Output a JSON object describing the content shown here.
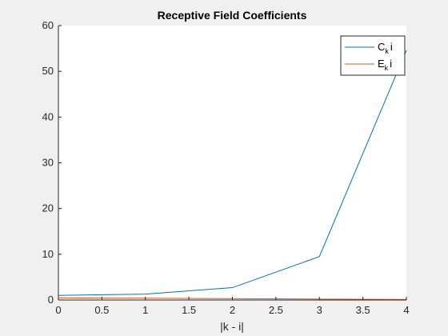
{
  "chart_data": {
    "type": "line",
    "title": "Receptive Field Coefficients",
    "xlabel": "|k - i|",
    "ylabel": "",
    "xlim": [
      0,
      4
    ],
    "ylim": [
      0,
      60
    ],
    "xticks": [
      0,
      0.5,
      1,
      1.5,
      2,
      2.5,
      3,
      3.5,
      4
    ],
    "xtick_labels": [
      "0",
      "0.5",
      "1",
      "1.5",
      "2",
      "2.5",
      "3",
      "3.5",
      "4"
    ],
    "yticks": [
      0,
      10,
      20,
      30,
      40,
      50,
      60
    ],
    "ytick_labels": [
      "0",
      "10",
      "20",
      "30",
      "40",
      "50",
      "60"
    ],
    "grid": false,
    "legend_position": "top-right",
    "series": [
      {
        "name": "C",
        "name_sub": "k",
        "name_suffix": "i",
        "color": "#0072bd",
        "x": [
          0,
          1,
          2,
          3,
          4
        ],
        "y": [
          1.0,
          1.3,
          2.7,
          9.5,
          54.6
        ]
      },
      {
        "name": "E",
        "name_sub": "k",
        "name_suffix": "i",
        "color": "#d95319",
        "x": [
          0,
          1,
          2,
          3,
          4
        ],
        "y": [
          0.45,
          0.4,
          0.3,
          0.2,
          0.1
        ]
      }
    ]
  }
}
